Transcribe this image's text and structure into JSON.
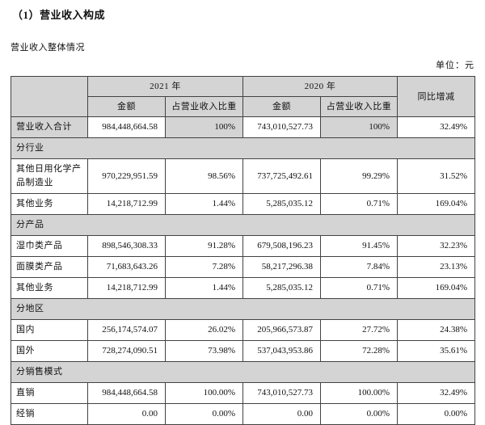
{
  "page": {
    "title": "（1）营业收入构成",
    "subtitle": "营业收入整体情况",
    "unit_label": "单位：元"
  },
  "table": {
    "header": {
      "year_2021": "2021 年",
      "year_2020": "2020 年",
      "amount": "金额",
      "pct": "占营业收入比重",
      "yoy": "同比增减"
    },
    "rows": [
      {
        "type": "data",
        "label": "营业收入合计",
        "shaded": true,
        "cells": [
          "984,448,664.58",
          "100%",
          "743,010,527.73",
          "100%",
          "32.49%"
        ]
      },
      {
        "type": "section",
        "label": "分行业"
      },
      {
        "type": "data",
        "label": "其他日用化学产品制造业",
        "shaded": false,
        "cells": [
          "970,229,951.59",
          "98.56%",
          "737,725,492.61",
          "99.29%",
          "31.52%"
        ]
      },
      {
        "type": "data",
        "label": "其他业务",
        "shaded": false,
        "cells": [
          "14,218,712.99",
          "1.44%",
          "5,285,035.12",
          "0.71%",
          "169.04%"
        ]
      },
      {
        "type": "section",
        "label": "分产品"
      },
      {
        "type": "data",
        "label": "湿巾类产品",
        "shaded": false,
        "cells": [
          "898,546,308.33",
          "91.28%",
          "679,508,196.23",
          "91.45%",
          "32.23%"
        ]
      },
      {
        "type": "data",
        "label": "面膜类产品",
        "shaded": false,
        "cells": [
          "71,683,643.26",
          "7.28%",
          "58,217,296.38",
          "7.84%",
          "23.13%"
        ]
      },
      {
        "type": "data",
        "label": "其他业务",
        "shaded": false,
        "cells": [
          "14,218,712.99",
          "1.44%",
          "5,285,035.12",
          "0.71%",
          "169.04%"
        ]
      },
      {
        "type": "section",
        "label": "分地区"
      },
      {
        "type": "data",
        "label": "国内",
        "shaded": false,
        "cells": [
          "256,174,574.07",
          "26.02%",
          "205,966,573.87",
          "27.72%",
          "24.38%"
        ]
      },
      {
        "type": "data",
        "label": "国外",
        "shaded": false,
        "cells": [
          "728,274,090.51",
          "73.98%",
          "537,043,953.86",
          "72.28%",
          "35.61%"
        ]
      },
      {
        "type": "section",
        "label": "分销售模式"
      },
      {
        "type": "data",
        "label": "直销",
        "shaded": false,
        "cells": [
          "984,448,664.58",
          "100.00%",
          "743,010,527.73",
          "100.00%",
          "32.49%"
        ]
      },
      {
        "type": "data",
        "label": "经销",
        "shaded": false,
        "cells": [
          "0.00",
          "0.00%",
          "0.00",
          "0.00%",
          "0.00%"
        ]
      }
    ]
  },
  "colors": {
    "header_bg": "#d4d4d4",
    "border": "#424242",
    "text": "#111111"
  }
}
